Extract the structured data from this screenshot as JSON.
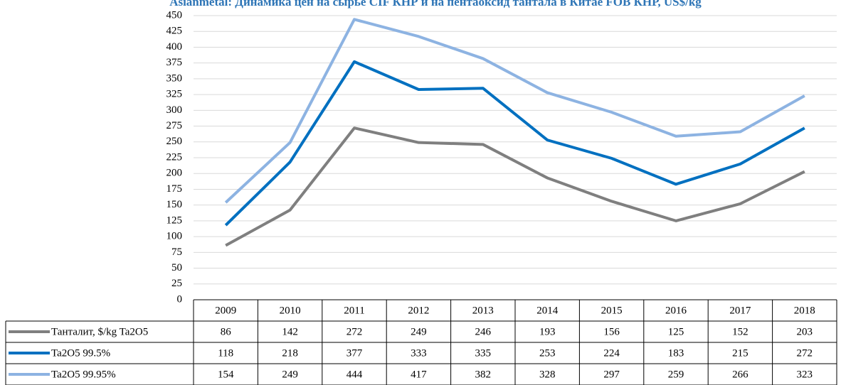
{
  "chart_data": {
    "type": "line",
    "title": "Asianmetal: Динамика цен на сырье CIF КНР и на пентаоксид тантала в Китае FOB КНР, US$/kg",
    "categories": [
      "2009",
      "2010",
      "2011",
      "2012",
      "2013",
      "2014",
      "2015",
      "2016",
      "2017",
      "2018"
    ],
    "series": [
      {
        "name": "Танталит, $/kg Ta2O5",
        "color": "#7f7f7f",
        "values": [
          86,
          142,
          272,
          249,
          246,
          193,
          156,
          125,
          152,
          203
        ]
      },
      {
        "name": "Ta2O5 99.5%",
        "color": "#0070c0",
        "values": [
          118,
          218,
          377,
          333,
          335,
          253,
          224,
          183,
          215,
          272
        ]
      },
      {
        "name": "Ta2O5 99.95%",
        "color": "#8db3e2",
        "values": [
          154,
          249,
          444,
          417,
          382,
          328,
          297,
          259,
          266,
          323
        ]
      }
    ],
    "ylim": [
      0,
      450
    ],
    "yticks": [
      0,
      25,
      50,
      75,
      100,
      125,
      150,
      175,
      200,
      225,
      250,
      275,
      300,
      325,
      350,
      375,
      400,
      425,
      450
    ],
    "grid": true
  }
}
